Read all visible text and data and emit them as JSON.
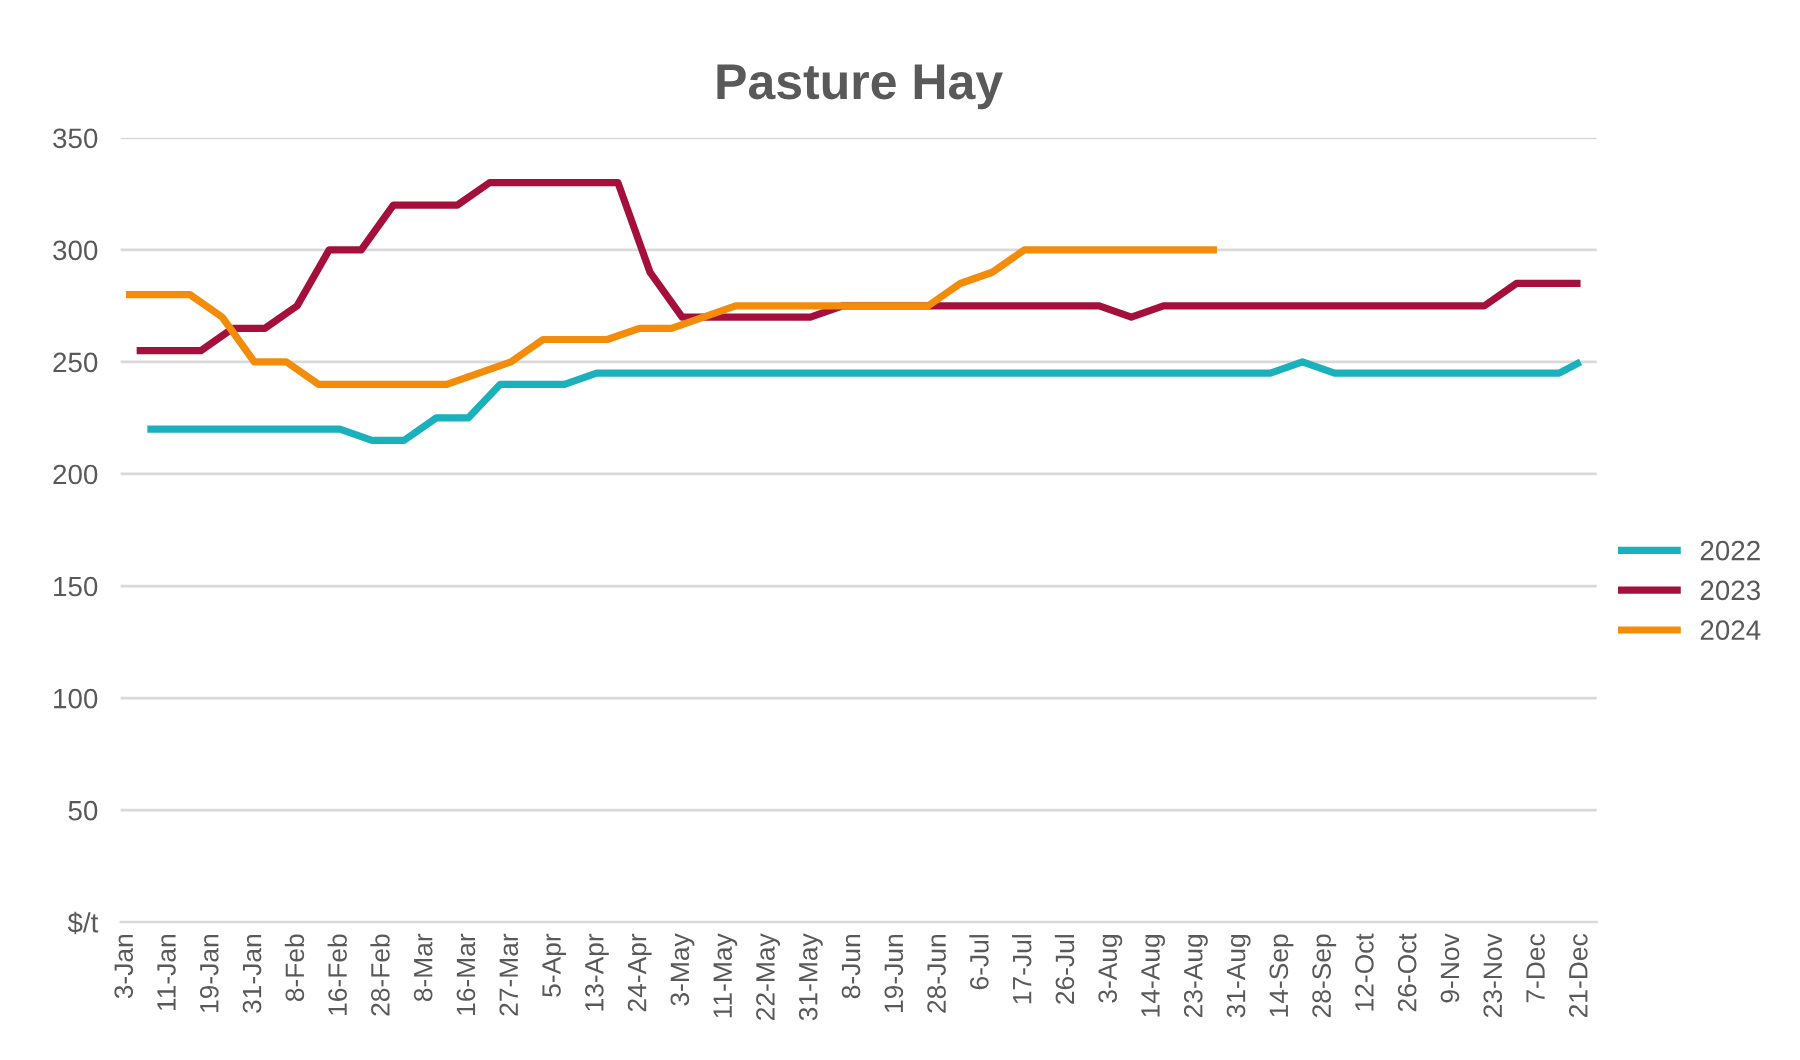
{
  "chart_data": {
    "type": "line",
    "title": "Pasture Hay",
    "categories": [
      "3-Jan",
      null,
      null,
      null,
      "11-Jan",
      null,
      null,
      null,
      "19-Jan",
      null,
      null,
      null,
      "31-Jan",
      null,
      null,
      null,
      "8-Feb",
      null,
      null,
      null,
      "16-Feb",
      null,
      null,
      null,
      "28-Feb",
      null,
      null,
      null,
      "8-Mar",
      null,
      null,
      null,
      "16-Mar",
      null,
      null,
      null,
      "27-Mar",
      null,
      null,
      null,
      "5-Apr",
      null,
      null,
      null,
      "13-Apr",
      null,
      null,
      null,
      "24-Apr",
      null,
      null,
      null,
      "3-May",
      null,
      null,
      null,
      "11-May",
      null,
      null,
      null,
      "22-May",
      null,
      null,
      null,
      "31-May",
      null,
      null,
      null,
      "8-Jun",
      null,
      null,
      null,
      "19-Jun",
      null,
      null,
      null,
      "28-Jun",
      null,
      null,
      null,
      "6-Jul",
      null,
      null,
      null,
      "17-Jul",
      null,
      null,
      null,
      "26-Jul",
      null,
      null,
      null,
      "3-Aug",
      null,
      null,
      null,
      "14-Aug",
      null,
      null,
      null,
      "23-Aug",
      null,
      null,
      null,
      "31-Aug",
      null,
      null,
      null,
      "14-Sep",
      null,
      null,
      null,
      "28-Sep",
      null,
      null,
      null,
      "12-Oct",
      null,
      null,
      null,
      "26-Oct",
      null,
      null,
      null,
      "9-Nov",
      null,
      null,
      null,
      "23-Nov",
      null,
      null,
      null,
      "7-Dec",
      null,
      null,
      null,
      "21-Dec",
      null
    ],
    "series": [
      {
        "name": "2022",
        "color": "#1ab1bd",
        "values": [
          null,
          null,
          220,
          null,
          null,
          220,
          null,
          null,
          220,
          null,
          null,
          220,
          null,
          null,
          220,
          null,
          null,
          220,
          null,
          null,
          220,
          null,
          null,
          215,
          null,
          null,
          215,
          null,
          null,
          225,
          null,
          null,
          225,
          null,
          null,
          240,
          null,
          null,
          240,
          null,
          null,
          240,
          null,
          null,
          245,
          null,
          null,
          245,
          null,
          null,
          245,
          null,
          null,
          245,
          null,
          null,
          245,
          null,
          null,
          245,
          null,
          null,
          245,
          null,
          null,
          245,
          null,
          null,
          245,
          null,
          null,
          245,
          null,
          null,
          245,
          null,
          null,
          245,
          null,
          null,
          245,
          null,
          null,
          245,
          null,
          null,
          245,
          null,
          null,
          245,
          null,
          null,
          245,
          null,
          null,
          245,
          null,
          null,
          245,
          null,
          null,
          245,
          null,
          null,
          245,
          null,
          null,
          245,
          null,
          null,
          250,
          null,
          null,
          245,
          null,
          null,
          245,
          null,
          null,
          245,
          null,
          null,
          245,
          null,
          null,
          245,
          null,
          null,
          245,
          null,
          null,
          245,
          null,
          null,
          245,
          null,
          250,
          null
        ]
      },
      {
        "name": "2023",
        "color": "#a4103b",
        "values": [
          null,
          255,
          null,
          null,
          255,
          null,
          null,
          255,
          null,
          null,
          265,
          null,
          null,
          265,
          null,
          null,
          275,
          null,
          null,
          300,
          null,
          null,
          300,
          null,
          null,
          320,
          null,
          null,
          320,
          null,
          null,
          320,
          null,
          null,
          330,
          null,
          null,
          330,
          null,
          null,
          330,
          null,
          null,
          330,
          null,
          null,
          330,
          null,
          null,
          290,
          null,
          null,
          270,
          null,
          null,
          270,
          null,
          null,
          270,
          null,
          null,
          270,
          null,
          null,
          270,
          null,
          null,
          275,
          null,
          null,
          275,
          null,
          null,
          275,
          null,
          null,
          275,
          null,
          null,
          275,
          null,
          null,
          275,
          null,
          null,
          275,
          null,
          null,
          275,
          null,
          null,
          275,
          null,
          null,
          270,
          null,
          null,
          275,
          null,
          null,
          275,
          null,
          null,
          275,
          null,
          null,
          275,
          null,
          null,
          275,
          null,
          null,
          275,
          null,
          null,
          275,
          null,
          null,
          275,
          null,
          null,
          275,
          null,
          null,
          275,
          null,
          null,
          275,
          null,
          null,
          285,
          null,
          null,
          285,
          null,
          null,
          285,
          null
        ]
      },
      {
        "name": "2024",
        "color": "#f28c0a",
        "values": [
          280,
          null,
          null,
          280,
          null,
          null,
          280,
          null,
          null,
          270,
          null,
          null,
          250,
          null,
          null,
          250,
          null,
          null,
          240,
          null,
          null,
          240,
          null,
          null,
          240,
          null,
          null,
          240,
          null,
          null,
          240,
          null,
          null,
          245,
          null,
          null,
          250,
          null,
          null,
          260,
          null,
          null,
          260,
          null,
          null,
          260,
          null,
          null,
          265,
          null,
          null,
          265,
          null,
          null,
          270,
          null,
          null,
          275,
          null,
          null,
          275,
          null,
          null,
          275,
          null,
          null,
          275,
          null,
          null,
          275,
          null,
          null,
          275,
          null,
          null,
          275,
          null,
          null,
          285,
          null,
          null,
          290,
          null,
          null,
          300,
          null,
          null,
          300,
          null,
          null,
          300,
          null,
          null,
          300,
          null,
          null,
          300,
          null,
          null,
          300,
          null,
          null,
          300,
          null,
          null,
          null,
          null,
          null,
          null,
          null,
          null,
          null,
          null,
          null,
          null,
          null,
          null,
          null,
          null,
          null,
          null,
          null,
          null,
          null,
          null,
          null,
          null,
          null,
          null,
          null,
          null,
          null,
          null,
          null,
          null,
          null,
          null,
          null
        ]
      }
    ],
    "ylim": [
      0,
      350
    ],
    "yticks": [
      {
        "value": 0,
        "label": "$/t"
      },
      50,
      100,
      150,
      200,
      250,
      300,
      350
    ],
    "grid": "y",
    "legend": "right",
    "marker": "none",
    "line_style": "solid"
  }
}
